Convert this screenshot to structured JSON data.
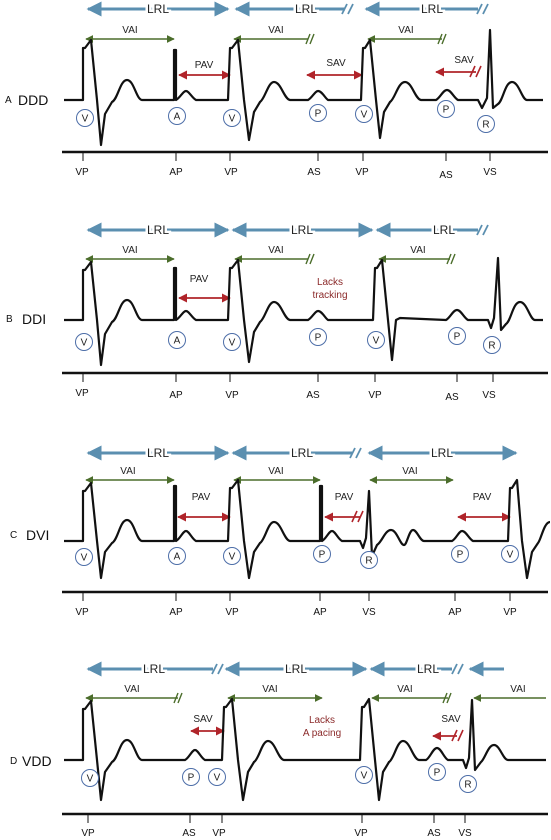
{
  "colors": {
    "lrl": "#5b8fb0",
    "vai": "#4b6d2b",
    "av": "#b0242a",
    "trace": "#111111",
    "circle": "#4d6ea8"
  },
  "panels": [
    {
      "letter": "A",
      "mode": "DDD",
      "lrl": [
        "LRL",
        "LRL",
        "LRL"
      ],
      "intervals": [
        "VAI",
        "PAV",
        "VAI",
        "SAV",
        "VAI",
        "SAV"
      ],
      "notes": [],
      "events": [
        "V",
        "A",
        "V",
        "P",
        "V",
        "P",
        "R"
      ],
      "ticks": [
        "VP",
        "AP",
        "VP",
        "AS",
        "VP",
        "AS",
        "VS"
      ]
    },
    {
      "letter": "B",
      "mode": "DDI",
      "lrl": [
        "LRL",
        "LRL",
        "LRL"
      ],
      "intervals": [
        "VAI",
        "PAV",
        "VAI",
        "VAI"
      ],
      "notes": [
        "Lacks",
        "tracking"
      ],
      "events": [
        "V",
        "A",
        "V",
        "P",
        "V",
        "P",
        "R"
      ],
      "ticks": [
        "VP",
        "AP",
        "VP",
        "AS",
        "VP",
        "AS",
        "VS"
      ]
    },
    {
      "letter": "C",
      "mode": "DVI",
      "lrl": [
        "LRL",
        "LRL",
        "LRL"
      ],
      "intervals": [
        "VAI",
        "PAV",
        "VAI",
        "PAV",
        "VAI",
        "PAV"
      ],
      "notes": [],
      "events": [
        "V",
        "A",
        "V",
        "P",
        "R",
        "P",
        "V"
      ],
      "ticks": [
        "VP",
        "AP",
        "VP",
        "AP",
        "VS",
        "AP",
        "VP"
      ]
    },
    {
      "letter": "D",
      "mode": "VDD",
      "lrl": [
        "LRL",
        "LRL",
        "LRL"
      ],
      "intervals": [
        "VAI",
        "SAV",
        "VAI",
        "VAI",
        "SAV",
        "VAI"
      ],
      "notes": [
        "Lacks",
        "A pacing"
      ],
      "events": [
        "V",
        "P",
        "V",
        "V",
        "P",
        "R"
      ],
      "ticks": [
        "VP",
        "AS",
        "VP",
        "VP",
        "AS",
        "VS"
      ]
    }
  ]
}
